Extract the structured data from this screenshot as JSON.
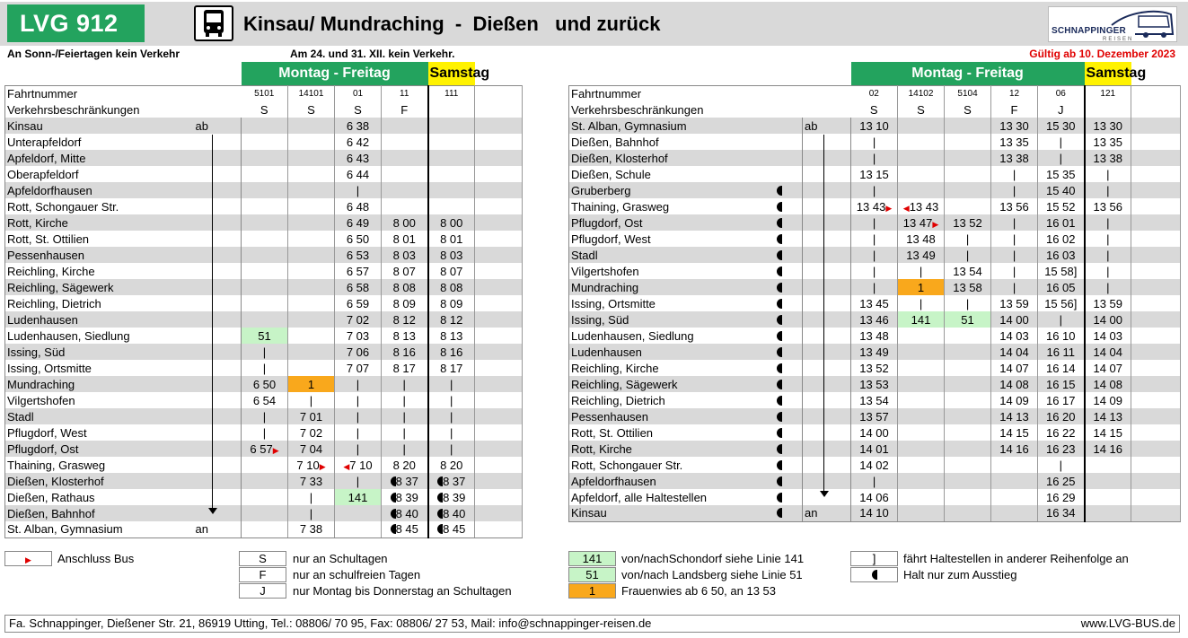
{
  "header": {
    "logo": "LVG 912",
    "title": "Kinsau/ Mundraching  -  Dießen   und zurück",
    "brand": "SCHNAPPINGER",
    "brand_sub": "REISEN",
    "note_left": "An Sonn-/Feiertagen kein Verkehr",
    "note_mid": "Am 24. und 31. XII. kein Verkehr.",
    "valid": "Gültig ab 10. Dezember 2023"
  },
  "day_labels": {
    "weekday": "Montag - Freitag",
    "saturday": "Samstag"
  },
  "row_labels": {
    "fahrtnummer": "Fahrtnummer",
    "beschraenkung": "Verkehrsbeschränkungen"
  },
  "left_table": {
    "trips": [
      "5101",
      "14101",
      "01",
      "11",
      "111"
    ],
    "restrictions": [
      "S",
      "S",
      "S",
      "F",
      ""
    ],
    "stops": [
      {
        "name": "Kinsau",
        "ab": "ab",
        "t": [
          "",
          "",
          "6 38",
          "",
          ""
        ]
      },
      {
        "name": "Unterapfeldorf",
        "ab": "",
        "t": [
          "",
          "",
          "6 42",
          "",
          ""
        ]
      },
      {
        "name": "Apfeldorf, Mitte",
        "ab": "",
        "t": [
          "",
          "",
          "6 43",
          "",
          ""
        ]
      },
      {
        "name": "Oberapfeldorf",
        "ab": "",
        "t": [
          "",
          "",
          "6 44",
          "",
          ""
        ]
      },
      {
        "name": "Apfeldorfhausen",
        "ab": "",
        "t": [
          "",
          "",
          "|",
          "",
          ""
        ]
      },
      {
        "name": "Rott, Schongauer Str.",
        "ab": "",
        "t": [
          "",
          "",
          "6 48",
          "",
          ""
        ]
      },
      {
        "name": "Rott, Kirche",
        "ab": "",
        "t": [
          "",
          "",
          "6 49",
          "8 00",
          "8 00"
        ]
      },
      {
        "name": "Rott, St. Ottilien",
        "ab": "",
        "t": [
          "",
          "",
          "6 50",
          "8 01",
          "8 01"
        ]
      },
      {
        "name": "Pessenhausen",
        "ab": "",
        "t": [
          "",
          "",
          "6 53",
          "8 03",
          "8 03"
        ]
      },
      {
        "name": "Reichling, Kirche",
        "ab": "",
        "t": [
          "",
          "",
          "6 57",
          "8 07",
          "8 07"
        ]
      },
      {
        "name": "Reichling, Sägewerk",
        "ab": "",
        "t": [
          "",
          "",
          "6 58",
          "8 08",
          "8 08"
        ]
      },
      {
        "name": "Reichling, Dietrich",
        "ab": "",
        "t": [
          "",
          "",
          "6 59",
          "8 09",
          "8 09"
        ]
      },
      {
        "name": "Ludenhausen",
        "ab": "",
        "t": [
          "",
          "",
          "7 02",
          "8 12",
          "8 12"
        ]
      },
      {
        "name": "Ludenhausen, Siedlung",
        "ab": "",
        "t": [
          "51",
          "",
          "7 03",
          "8 13",
          "8 13"
        ]
      },
      {
        "name": "Issing, Süd",
        "ab": "",
        "t": [
          "|",
          "",
          "7 06",
          "8 16",
          "8 16"
        ]
      },
      {
        "name": "Issing, Ortsmitte",
        "ab": "",
        "t": [
          "|",
          "",
          "7 07",
          "8 17",
          "8 17"
        ]
      },
      {
        "name": "Mundraching",
        "ab": "",
        "t": [
          "6 50",
          "1",
          "|",
          "|",
          "|"
        ]
      },
      {
        "name": "Vilgertshofen",
        "ab": "",
        "t": [
          "6 54",
          "|",
          "|",
          "|",
          "|"
        ]
      },
      {
        "name": "Stadl",
        "ab": "",
        "t": [
          "|",
          "7 01",
          "|",
          "|",
          "|"
        ]
      },
      {
        "name": "Pflugdorf, West",
        "ab": "",
        "t": [
          "|",
          "7 02",
          "|",
          "|",
          "|"
        ]
      },
      {
        "name": "Pflugdorf, Ost",
        "ab": "",
        "t": [
          "6 57",
          "7 04",
          "|",
          "|",
          "|"
        ]
      },
      {
        "name": "Thaining, Grasweg",
        "ab": "",
        "t": [
          "",
          "7 10",
          "7 10",
          "8 20",
          "8 20"
        ]
      },
      {
        "name": "Dießen, Klosterhof",
        "ab": "",
        "t": [
          "",
          "7 33",
          "|",
          "8 37",
          "8 37"
        ]
      },
      {
        "name": "Dießen, Rathaus",
        "ab": "",
        "t": [
          "",
          "|",
          "141",
          "8 39",
          "8 39"
        ]
      },
      {
        "name": "Dießen, Bahnhof",
        "ab": "",
        "t": [
          "",
          "|",
          "",
          "8 40",
          "8 40"
        ]
      },
      {
        "name": "St. Alban, Gymnasium",
        "ab": "an",
        "t": [
          "",
          "7 38",
          "",
          "8 45",
          "8 45"
        ]
      }
    ]
  },
  "right_table": {
    "trips": [
      "02",
      "14102",
      "5104",
      "12",
      "06",
      "121"
    ],
    "restrictions": [
      "S",
      "S",
      "S",
      "F",
      "J",
      ""
    ],
    "stops": [
      {
        "name": "St. Alban, Gymnasium",
        "ab": "ab",
        "t": [
          "13 10",
          "",
          "",
          "13 30",
          "15 30",
          "13 30"
        ]
      },
      {
        "name": "Dießen, Bahnhof",
        "ab": "",
        "t": [
          "|",
          "",
          "",
          "13 35",
          "|",
          "13 35"
        ]
      },
      {
        "name": "Dießen, Klosterhof",
        "ab": "",
        "t": [
          "|",
          "",
          "",
          "13 38",
          "|",
          "13 38"
        ]
      },
      {
        "name": "Dießen, Schule",
        "ab": "",
        "t": [
          "13 15",
          "",
          "",
          "|",
          "15 35",
          "|"
        ]
      },
      {
        "name": "Gruberberg",
        "ab": "",
        "t": [
          "|",
          "",
          "",
          "|",
          "15 40",
          "|"
        ]
      },
      {
        "name": "Thaining, Grasweg",
        "ab": "",
        "t": [
          "13 43",
          "13 43",
          "",
          "13 56",
          "15 52",
          "13 56"
        ]
      },
      {
        "name": "Pflugdorf, Ost",
        "ab": "",
        "t": [
          "|",
          "13 47",
          "13 52",
          "|",
          "16 01",
          "|"
        ]
      },
      {
        "name": "Pflugdorf, West",
        "ab": "",
        "t": [
          "|",
          "13 48",
          "|",
          "|",
          "16 02",
          "|"
        ]
      },
      {
        "name": "Stadl",
        "ab": "",
        "t": [
          "|",
          "13 49",
          "|",
          "|",
          "16 03",
          "|"
        ]
      },
      {
        "name": "Vilgertshofen",
        "ab": "",
        "t": [
          "|",
          "|",
          "13 54",
          "|",
          "15 58]",
          "|"
        ]
      },
      {
        "name": "Mundraching",
        "ab": "",
        "t": [
          "|",
          "1",
          "13 58",
          "|",
          "16 05",
          "|"
        ]
      },
      {
        "name": "Issing, Ortsmitte",
        "ab": "",
        "t": [
          "13 45",
          "|",
          "|",
          "13 59",
          "15 56]",
          "13 59"
        ]
      },
      {
        "name": "Issing, Süd",
        "ab": "",
        "t": [
          "13 46",
          "141",
          "51",
          "14 00",
          "|",
          "14 00"
        ]
      },
      {
        "name": "Ludenhausen, Siedlung",
        "ab": "",
        "t": [
          "13 48",
          "",
          "",
          "14 03",
          "16 10",
          "14 03"
        ]
      },
      {
        "name": "Ludenhausen",
        "ab": "",
        "t": [
          "13 49",
          "",
          "",
          "14 04",
          "16 11",
          "14 04"
        ]
      },
      {
        "name": "Reichling, Kirche",
        "ab": "",
        "t": [
          "13 52",
          "",
          "",
          "14 07",
          "16 14",
          "14 07"
        ]
      },
      {
        "name": "Reichling, Sägewerk",
        "ab": "",
        "t": [
          "13 53",
          "",
          "",
          "14 08",
          "16 15",
          "14 08"
        ]
      },
      {
        "name": "Reichling, Dietrich",
        "ab": "",
        "t": [
          "13 54",
          "",
          "",
          "14 09",
          "16 17",
          "14 09"
        ]
      },
      {
        "name": "Pessenhausen",
        "ab": "",
        "t": [
          "13 57",
          "",
          "",
          "14 13",
          "16 20",
          "14 13"
        ]
      },
      {
        "name": "Rott, St. Ottilien",
        "ab": "",
        "t": [
          "14 00",
          "",
          "",
          "14 15",
          "16 22",
          "14 15"
        ]
      },
      {
        "name": "Rott, Kirche",
        "ab": "",
        "t": [
          "14 01",
          "",
          "",
          "14 16",
          "16 23",
          "14 16"
        ]
      },
      {
        "name": "Rott, Schongauer Str.",
        "ab": "",
        "t": [
          "14 02",
          "",
          "",
          "",
          "|",
          ""
        ]
      },
      {
        "name": "Apfeldorfhausen",
        "ab": "",
        "t": [
          "|",
          "",
          "",
          "",
          "16 25",
          ""
        ]
      },
      {
        "name": "Apfeldorf, alle Haltestellen",
        "ab": "",
        "t": [
          "14 06",
          "",
          "",
          "",
          "16 29",
          ""
        ]
      },
      {
        "name": "Kinsau",
        "ab": "an",
        "t": [
          "14 10",
          "",
          "",
          "",
          "16 34",
          ""
        ]
      }
    ]
  },
  "legend": {
    "anschluss": "Anschluss Bus",
    "S": {
      "code": "S",
      "text": "nur an Schultagen"
    },
    "F": {
      "code": "F",
      "text": "nur an schulfreien Tagen"
    },
    "J": {
      "code": "J",
      "text": "nur Montag bis Donnerstag an Schultagen"
    },
    "l141": {
      "code": "141",
      "text": "von/nachSchondorf siehe Linie 141"
    },
    "l51": {
      "code": "51",
      "text": "von/nach Landsberg siehe Linie 51"
    },
    "l1": {
      "code": "1",
      "text": "Frauenwies ab 6 50, an 13 53"
    },
    "bracket": {
      "code": "]",
      "text": "fährt Haltestellen in anderer Reihenfolge an"
    },
    "halt": {
      "text": "Halt nur zum Ausstieg"
    }
  },
  "footer": {
    "contact": "Fa. Schnappinger, Dießener Str. 21, 86919 Utting, Tel.: 08806/ 70 95, Fax: 08806/ 27 53, Mail: info@schnappinger-reisen.de",
    "web": "www.LVG-BUS.de"
  },
  "colors": {
    "green": "#23a35e",
    "yellow": "#fff200",
    "orange": "#f9a81c",
    "light_green": "#c7f4c7",
    "red": "#e00000"
  }
}
